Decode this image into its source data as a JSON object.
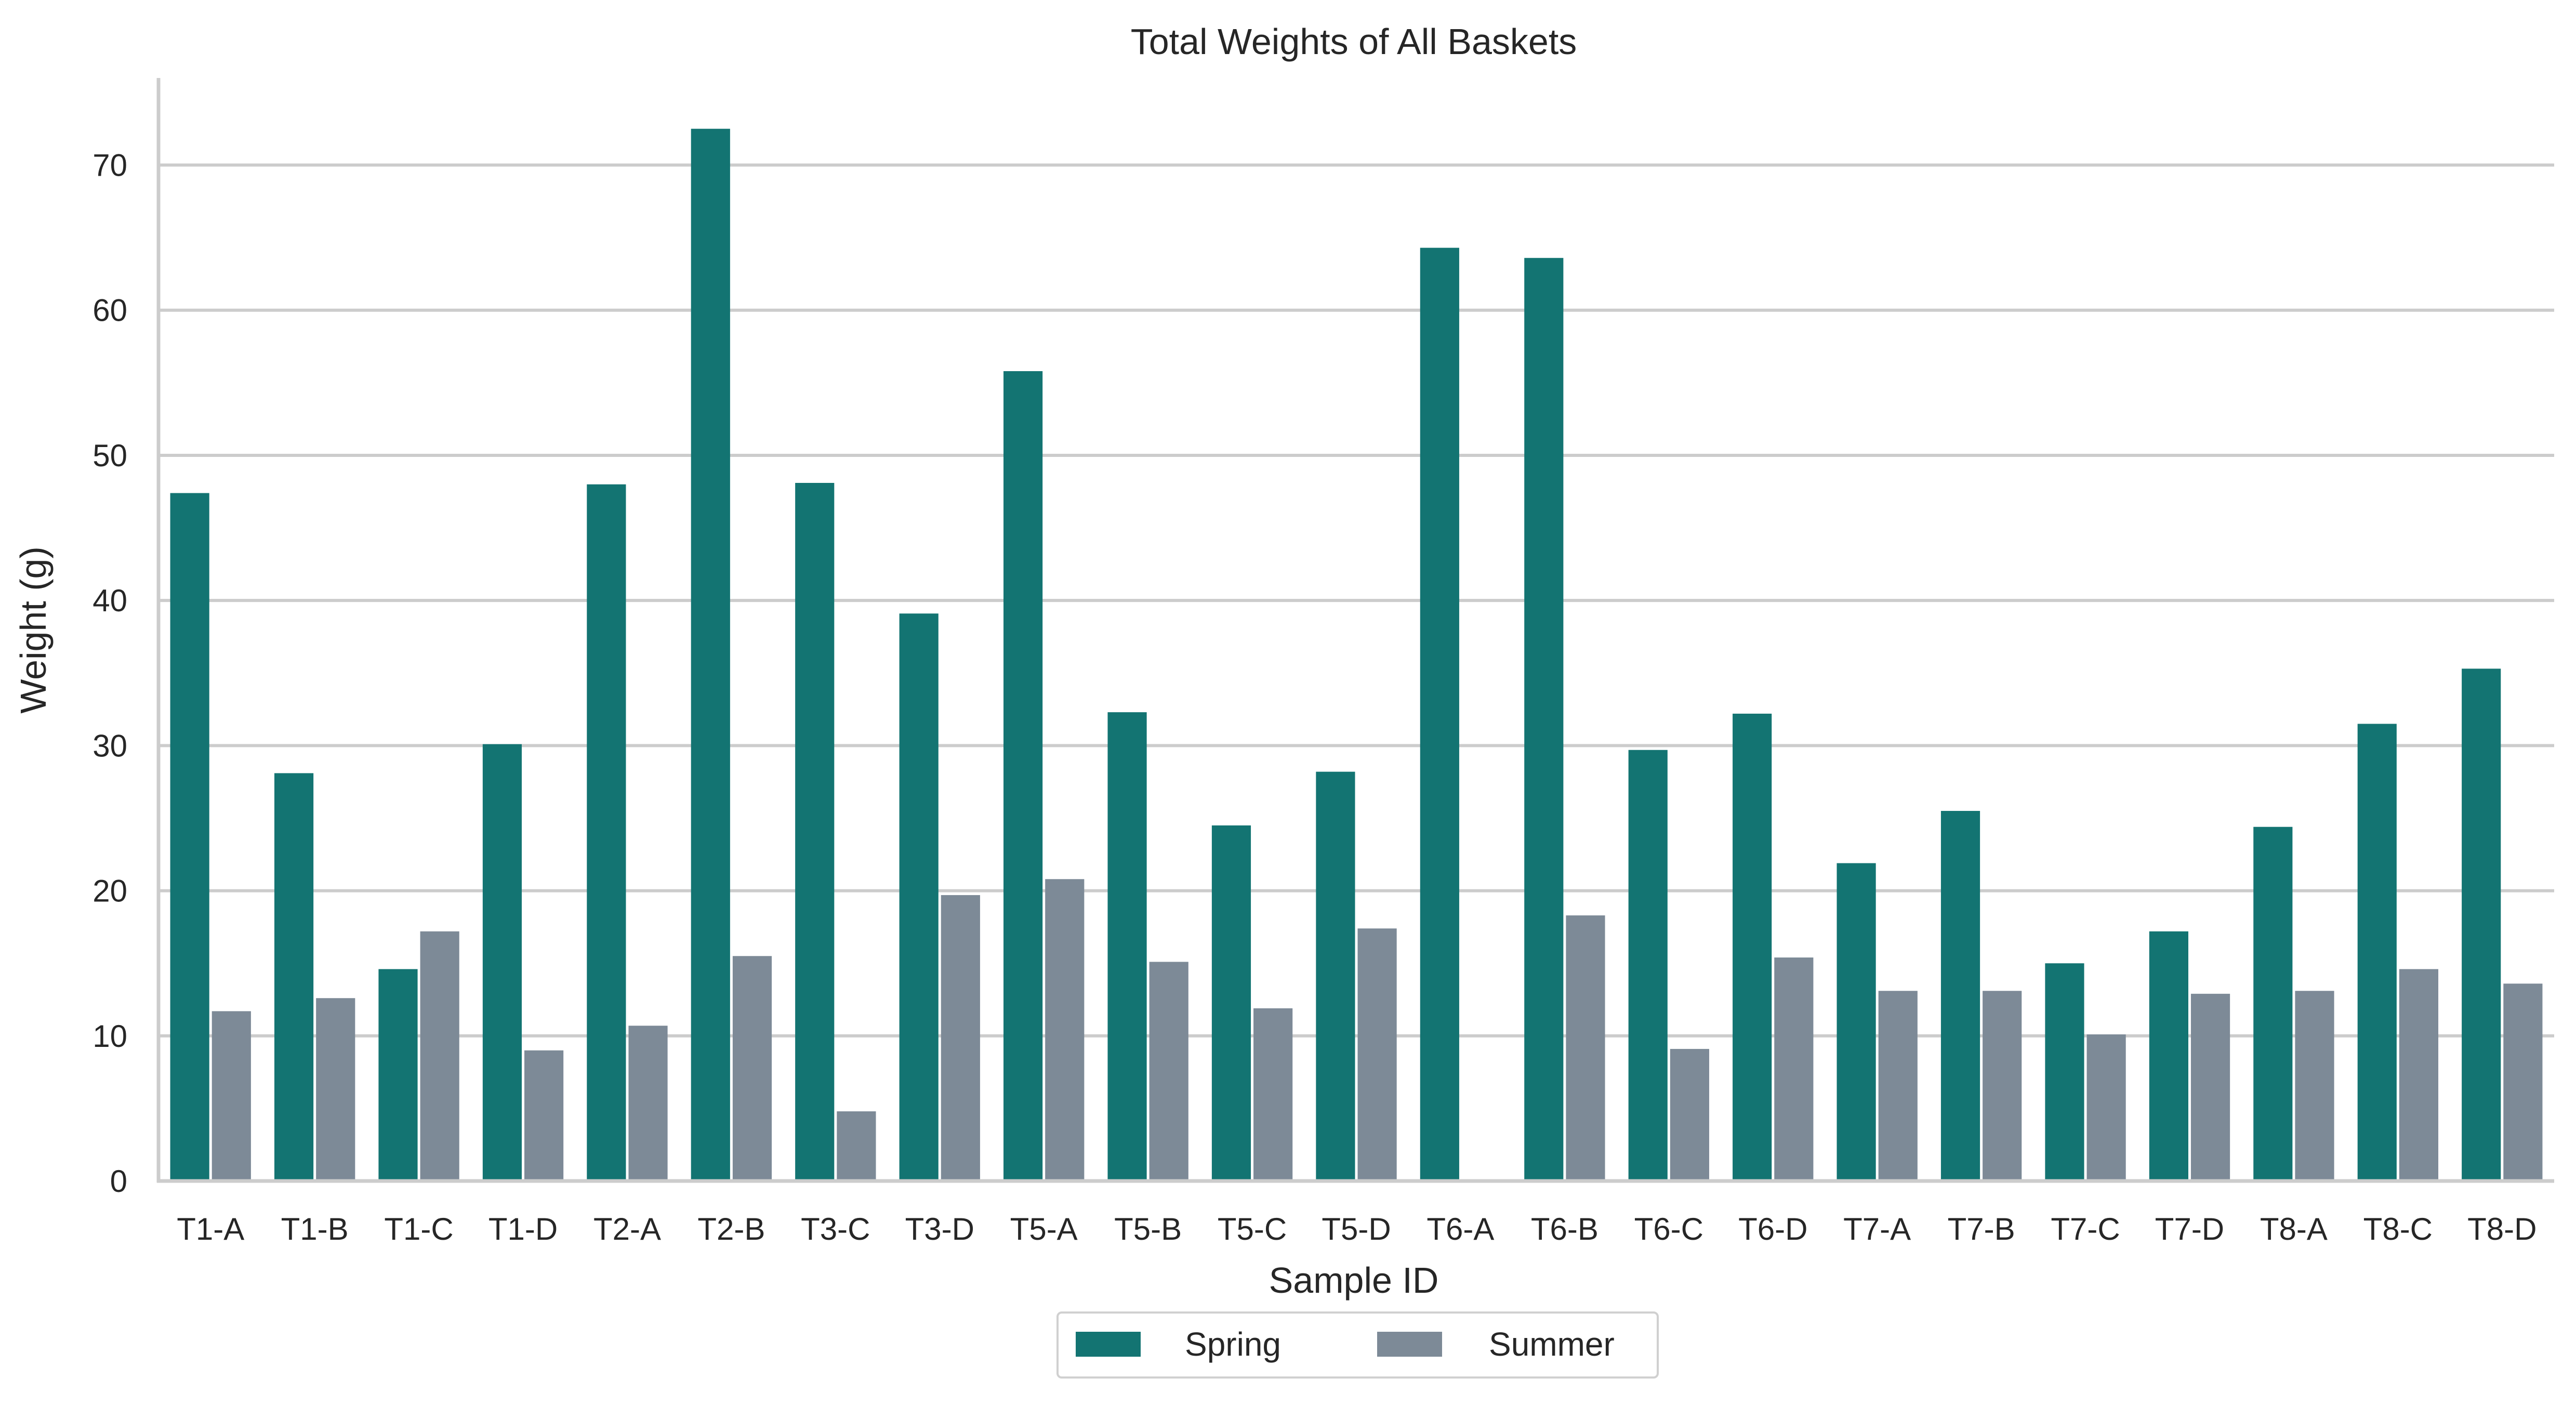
{
  "chart_data": {
    "type": "bar",
    "title": "Total Weights of All Baskets",
    "xlabel": "Sample ID",
    "ylabel": "Weight (g)",
    "ylim": [
      0,
      76
    ],
    "yticks": [
      "0",
      "10",
      "20",
      "30",
      "40",
      "50",
      "60",
      "70"
    ],
    "grid": "horizontal",
    "legend_position": "bottom-center",
    "categories": [
      "T1-A",
      "T1-B",
      "T1-C",
      "T1-D",
      "T2-A",
      "T2-B",
      "T3-C",
      "T3-D",
      "T5-A",
      "T5-B",
      "T5-C",
      "T5-D",
      "T6-A",
      "T6-B",
      "T6-C",
      "T6-D",
      "T7-A",
      "T7-B",
      "T7-C",
      "T7-D",
      "T8-A",
      "T8-C",
      "T8-D"
    ],
    "series": [
      {
        "name": "Spring",
        "color": "#137472",
        "values": [
          47.4,
          28.1,
          14.6,
          30.1,
          48.0,
          72.5,
          48.1,
          39.1,
          55.8,
          32.3,
          24.5,
          28.2,
          64.3,
          63.6,
          29.7,
          32.2,
          21.9,
          25.5,
          15.0,
          17.2,
          24.4,
          31.5,
          35.3
        ]
      },
      {
        "name": "Summer",
        "color": "#7d8a97",
        "values": [
          11.7,
          12.6,
          17.2,
          9.0,
          10.7,
          15.5,
          4.8,
          19.7,
          20.8,
          15.1,
          11.9,
          17.4,
          0.0,
          18.3,
          9.1,
          15.4,
          13.1,
          13.1,
          10.1,
          12.9,
          13.1,
          14.6,
          13.6
        ]
      }
    ]
  }
}
